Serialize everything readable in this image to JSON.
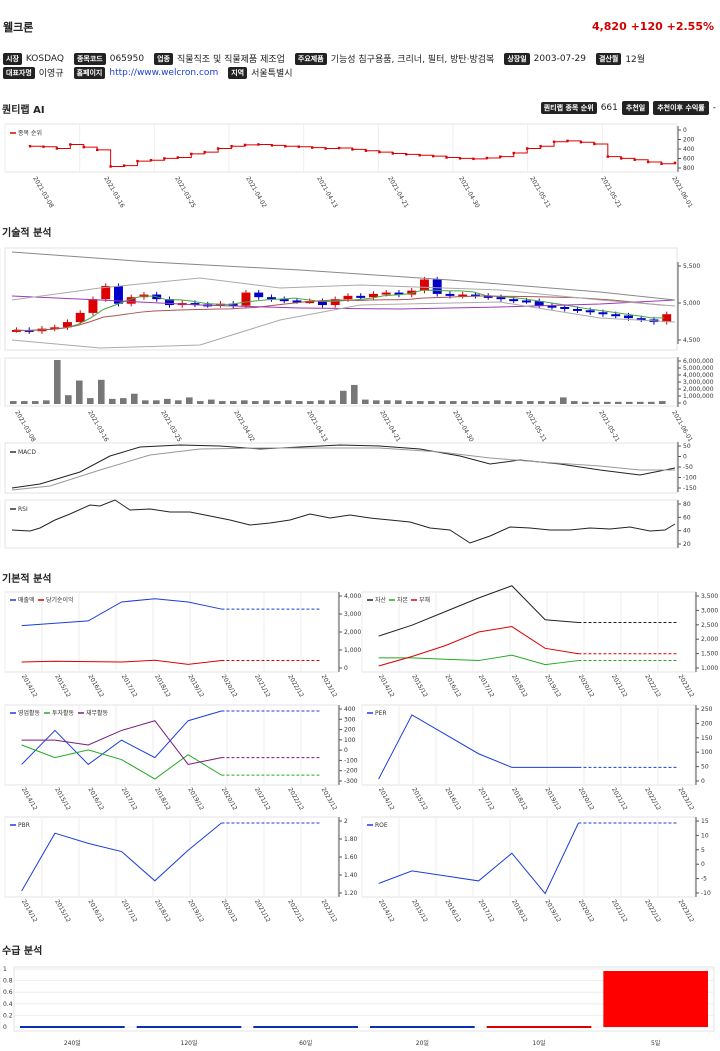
{
  "header": {
    "name": "웰크론",
    "price": "4,820",
    "change": "+120",
    "change_pct": "+2.55%"
  },
  "info1": [
    {
      "tag": "시장",
      "value": "KOSDAQ"
    },
    {
      "tag": "종목코드",
      "value": "065950"
    },
    {
      "tag": "업종",
      "value": "직물직조 및 직물제품 제조업"
    },
    {
      "tag": "주요제품",
      "value": "기능성 침구용품, 크리너, 필터, 방탄·방검복"
    },
    {
      "tag": "상장일",
      "value": "2003-07-29"
    },
    {
      "tag": "결산월",
      "value": "12월"
    }
  ],
  "info2": [
    {
      "tag": "대표자명",
      "value": "이영규"
    },
    {
      "tag": "홈페이지",
      "value": "http://www.welcron.com",
      "link": true
    },
    {
      "tag": "지역",
      "value": "서울특별시"
    }
  ],
  "sections": {
    "ai": "퀀티랩 AI",
    "tech": "기술적 분석",
    "fund": "기본적 분석",
    "supply": "수급 분석"
  },
  "rank": {
    "label": "퀀티랩 종목 순위",
    "value": "661",
    "btn1": "추천일",
    "btn2": "추천이후 수익률",
    "dash": "-"
  },
  "dates": [
    "2021-03-08",
    "2021-03-16",
    "2021-03-25",
    "2021-04-02",
    "2021-04-13",
    "2021-04-21",
    "2021-04-30",
    "2021-05-11",
    "2021-05-21",
    "2021-06-01"
  ],
  "rank_chart": {
    "legend": "종목 순위",
    "yticks": [
      "0",
      "200",
      "400",
      "600",
      "800"
    ]
  },
  "price_chart": {
    "yticks": [
      "5,500",
      "5,000",
      "4,500"
    ]
  },
  "volume_chart": {
    "yticks": [
      "6,000,000",
      "5,000,000",
      "4,000,000",
      "3,000,000",
      "2,000,000",
      "1,000,000",
      "0"
    ]
  },
  "macd_chart": {
    "legend": "MACD",
    "yticks": [
      "50",
      "0",
      "-50",
      "-100",
      "-150"
    ]
  },
  "rsi_chart": {
    "legend": "RSI",
    "yticks": [
      "80",
      "60",
      "40",
      "20"
    ]
  },
  "years": [
    "2014/12",
    "2015/12",
    "2016/12",
    "2017/12",
    "2018/12",
    "2019/12",
    "2020/12",
    "2021/12",
    "2022/12",
    "2023/12"
  ],
  "chart_data": [
    {
      "type": "line",
      "title": "",
      "legend": [
        "종목 순위"
      ],
      "x": [
        "2021-03-08",
        "2021-03-16",
        "2021-03-25",
        "2021-04-02",
        "2021-04-13",
        "2021-04-21",
        "2021-04-30",
        "2021-05-11",
        "2021-05-21",
        "2021-06-01"
      ],
      "series": [
        {
          "name": "종목 순위",
          "values": [
            250,
            230,
            720,
            550,
            200,
            290,
            420,
            530,
            150,
            620
          ]
        }
      ],
      "yaxis": "inverted",
      "ylim": [
        0,
        800
      ]
    },
    {
      "type": "line",
      "legend": [
        "매출액",
        "당기순이익"
      ],
      "categories": [
        "2014/12",
        "2015/12",
        "2016/12",
        "2017/12",
        "2018/12",
        "2019/12",
        "2020/12"
      ],
      "series": [
        {
          "name": "매출액",
          "values": [
            2250,
            2400,
            2550,
            3750,
            3950,
            3750,
            3300
          ]
        },
        {
          "name": "당기순이익",
          "values": [
            -50,
            0,
            -20,
            -50,
            60,
            -200,
            50
          ]
        }
      ],
      "ylim": [
        -300,
        4000
      ]
    },
    {
      "type": "line",
      "legend": [
        "자산",
        "자본",
        "부채"
      ],
      "categories": [
        "2014/12",
        "2015/12",
        "2016/12",
        "2017/12",
        "2018/12",
        "2019/12",
        "2020/12"
      ],
      "series": [
        {
          "name": "자산",
          "values": [
            2100,
            2500,
            3000,
            3500,
            3950,
            2700,
            2600
          ]
        },
        {
          "name": "자본",
          "values": [
            1300,
            1300,
            1250,
            1200,
            1400,
            1050,
            1200
          ]
        },
        {
          "name": "부채",
          "values": [
            1000,
            1350,
            1750,
            2250,
            2450,
            1650,
            1450
          ]
        }
      ],
      "ylim": [
        1000,
        3500
      ]
    },
    {
      "type": "line",
      "legend": [
        "영업활동",
        "투자활동",
        "재무활동"
      ],
      "categories": [
        "2014/12",
        "2015/12",
        "2016/12",
        "2017/12",
        "2018/12",
        "2019/12",
        "2020/12"
      ],
      "series": [
        {
          "name": "영업활동",
          "values": [
            -150,
            200,
            -150,
            100,
            -80,
            300,
            400
          ]
        },
        {
          "name": "투자활동",
          "values": [
            50,
            -80,
            0,
            -100,
            -300,
            -50,
            -260
          ]
        },
        {
          "name": "재무활동",
          "values": [
            100,
            100,
            50,
            200,
            300,
            -150,
            -80
          ]
        }
      ],
      "ylim": [
        -300,
        400
      ]
    },
    {
      "type": "line",
      "legend": [
        "PER"
      ],
      "categories": [
        "2014/12",
        "2015/12",
        "2016/12",
        "2017/12",
        "2018/12",
        "2019/12",
        "2020/12"
      ],
      "series": [
        {
          "name": "PER",
          "values": [
            -50,
            280,
            180,
            80,
            10,
            10,
            10
          ]
        }
      ],
      "ylim": [
        -50,
        300
      ]
    },
    {
      "type": "line",
      "legend": [
        "PBR"
      ],
      "categories": [
        "2014/12",
        "2015/12",
        "2016/12",
        "2017/12",
        "2018/12",
        "2019/12",
        "2020/12"
      ],
      "series": [
        {
          "name": "PBR",
          "values": [
            1.1,
            1.95,
            1.8,
            1.68,
            1.25,
            1.7,
            2.1
          ]
        }
      ],
      "ylim": [
        1.1,
        2.1
      ]
    },
    {
      "type": "line",
      "legend": [
        "ROE"
      ],
      "categories": [
        "2014/12",
        "2015/12",
        "2016/12",
        "2017/12",
        "2018/12",
        "2019/12",
        "2020/12"
      ],
      "series": [
        {
          "name": "ROE",
          "values": [
            -7,
            -2,
            -4,
            -6,
            5,
            -11,
            17
          ]
        }
      ],
      "ylim": [
        -10,
        17
      ]
    },
    {
      "type": "bar",
      "categories": [
        "240일",
        "120일",
        "60일",
        "20일",
        "10일",
        "5일"
      ],
      "series": [
        {
          "name": "",
          "values": [
            0,
            0,
            0,
            -0.01,
            0,
            1
          ]
        }
      ],
      "ylim": [
        0,
        1
      ]
    }
  ]
}
